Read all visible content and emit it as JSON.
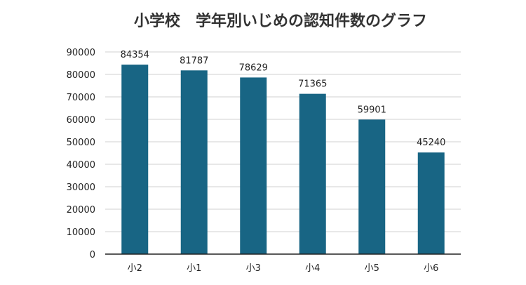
{
  "chart_data": {
    "type": "bar",
    "title": "小学校　学年別いじめの認知件数のグラフ",
    "xlabel": "",
    "ylabel": "",
    "categories": [
      "小2",
      "小1",
      "小3",
      "小4",
      "小5",
      "小6"
    ],
    "values": [
      84354,
      81787,
      78629,
      71365,
      59901,
      45240
    ],
    "data_labels": [
      "84354",
      "81787",
      "78629",
      "71365",
      "59901",
      "45240"
    ],
    "ylim": [
      0,
      90000
    ],
    "yticks": [
      0,
      10000,
      20000,
      30000,
      40000,
      50000,
      60000,
      70000,
      80000,
      90000
    ],
    "ytick_labels": [
      "0",
      "10000",
      "20000",
      "30000",
      "40000",
      "50000",
      "60000",
      "70000",
      "80000",
      "90000"
    ],
    "grid": true,
    "legend": "none",
    "colors": {
      "bar": "#186584",
      "grid": "#d0d0d0",
      "axis": "#222222",
      "text": "#222222",
      "title": "#333333"
    }
  }
}
